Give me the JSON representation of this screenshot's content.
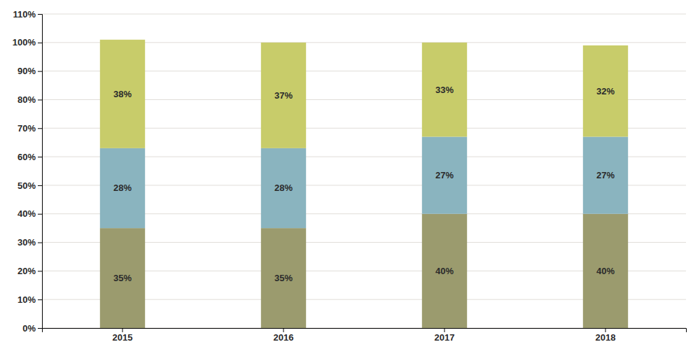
{
  "chart_data": {
    "type": "bar",
    "stacked": true,
    "grid": true,
    "data_labels": true,
    "categories": [
      "2015",
      "2016",
      "2017",
      "2018"
    ],
    "series": [
      {
        "color": "#9b9b6e",
        "values": [
          35,
          35,
          40,
          40
        ],
        "value_labels": [
          "35%",
          "35%",
          "40%",
          "40%"
        ]
      },
      {
        "color": "#8ab4bf",
        "values": [
          28,
          28,
          27,
          27
        ],
        "value_labels": [
          "28%",
          "28%",
          "27%",
          "27%"
        ]
      },
      {
        "color": "#c8cc6a",
        "values": [
          38,
          37,
          33,
          32
        ],
        "value_labels": [
          "38%",
          "37%",
          "33%",
          "32%"
        ]
      }
    ],
    "ylim": [
      0,
      110
    ],
    "yticks": [
      {
        "value": 0,
        "label": "0%"
      },
      {
        "value": 10,
        "label": "10%"
      },
      {
        "value": 20,
        "label": "20%"
      },
      {
        "value": 30,
        "label": "30%"
      },
      {
        "value": 40,
        "label": "40%"
      },
      {
        "value": 50,
        "label": "50%"
      },
      {
        "value": 60,
        "label": "60%"
      },
      {
        "value": 70,
        "label": "70%"
      },
      {
        "value": 80,
        "label": "80%"
      },
      {
        "value": 90,
        "label": "90%"
      },
      {
        "value": 100,
        "label": "100%"
      },
      {
        "value": 110,
        "label": "110%"
      }
    ]
  }
}
